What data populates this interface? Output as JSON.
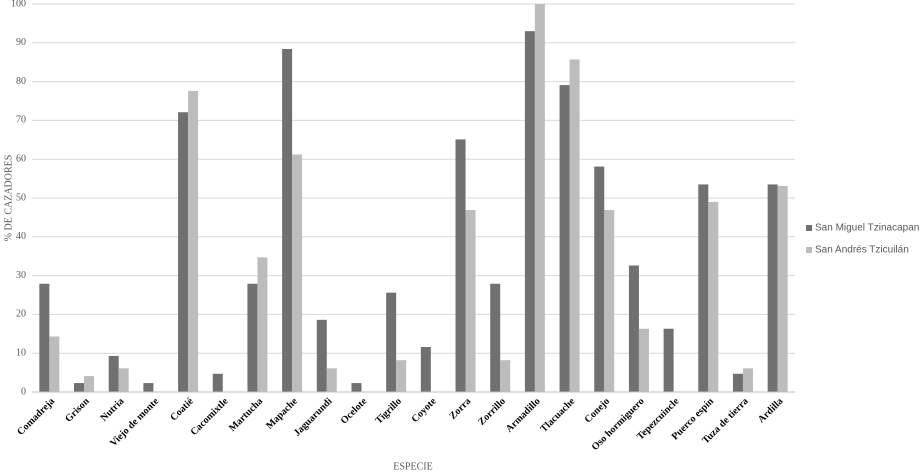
{
  "chart_data": {
    "type": "bar",
    "x_label": "ESPECIE",
    "y_label": "% DE CAZADORES",
    "categories": [
      "Comadreja",
      "Grison",
      "Nutria",
      "Viejo de monte",
      "Coatié",
      "Cacomixtle",
      "Martucha",
      "Mapache",
      "Jaguarundi",
      "Ocelote",
      "Tigrillo",
      "Coyote",
      "Zorra",
      "Zorrillo",
      "Armadillo",
      "Tlacuache",
      "Conejo",
      "Oso hormiguero",
      "Tepezcuincle",
      "Puerco espín",
      "Tuza de tierra",
      "Ardilla"
    ],
    "series": [
      {
        "name": "San Miguel Tzinacapan",
        "color": "#707070",
        "values": [
          27.9,
          2.3,
          9.3,
          2.3,
          72.1,
          4.7,
          27.9,
          88.4,
          18.6,
          2.3,
          25.6,
          11.6,
          65.1,
          27.9,
          93.0,
          79.1,
          58.1,
          32.6,
          16.3,
          53.5,
          4.7,
          53.5
        ]
      },
      {
        "name": "San Andrés Tzicuilán",
        "color": "#bcbcbc",
        "values": [
          14.3,
          4.1,
          6.1,
          0,
          77.6,
          0,
          34.7,
          61.2,
          6.1,
          0,
          8.2,
          0,
          46.9,
          8.2,
          100,
          85.7,
          46.9,
          16.3,
          0,
          49.0,
          6.1,
          53.1
        ]
      }
    ],
    "ylim": [
      0,
      100
    ],
    "yticks": [
      0,
      10,
      20,
      30,
      40,
      50,
      60,
      70,
      80,
      90,
      100
    ],
    "grid": true,
    "legend": "right"
  }
}
